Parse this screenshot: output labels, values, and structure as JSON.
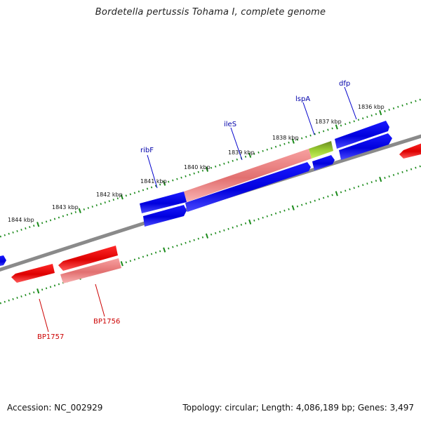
{
  "title": "Bordetella pertussis Tohama I, complete genome",
  "footer": {
    "accession": "Accession: NC_002929",
    "summary": "Topology: circular; Length: 4,086,189 bp; Genes: 3,497"
  },
  "colors": {
    "forward_cds": "#0000ee",
    "reverse_cds": "#ee0000",
    "rna_gene": "#f08080",
    "highlight_gene": "#88cc22",
    "backbone": "#808080",
    "tick": "#1a8a1a",
    "forward_label": "#0000aa",
    "reverse_label": "#cc0000"
  },
  "scale_labels": [
    "1836 kbp",
    "1837 kbp",
    "1838 kbp",
    "1839 kbp",
    "1840 kbp",
    "1841 kbp",
    "1842 kbp",
    "1843 kbp",
    "1844 kbp"
  ],
  "gene_labels": {
    "forward": [
      "dfp",
      "lspA",
      "ileS",
      "ribF"
    ],
    "reverse": [
      "BP1756",
      "BP1757"
    ]
  }
}
